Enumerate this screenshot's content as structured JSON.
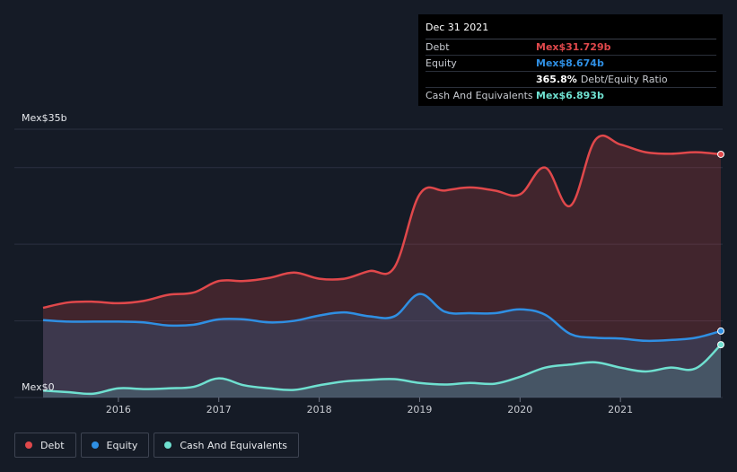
{
  "tooltip": {
    "date": "Dec 31 2021",
    "debt_label": "Debt",
    "debt_value": "Mex$31.729b",
    "equity_label": "Equity",
    "equity_value": "Mex$8.674b",
    "ratio_value": "365.8%",
    "ratio_label": "Debt/Equity Ratio",
    "cash_label": "Cash And Equivalents",
    "cash_value": "Mex$6.893b"
  },
  "legend": [
    {
      "label": "Debt",
      "color": "#e0484b"
    },
    {
      "label": "Equity",
      "color": "#2f8fe3"
    },
    {
      "label": "Cash And Equivalents",
      "color": "#6fe0d0"
    }
  ],
  "colors": {
    "debt": "#e0484b",
    "equity": "#2f8fe3",
    "cash": "#6fe0d0",
    "grid": "#2b3040"
  },
  "chart_data": {
    "type": "area",
    "title": "",
    "xlabel": "",
    "ylabel": "",
    "ylim": [
      0,
      35
    ],
    "xlim": [
      2015.25,
      2022.0
    ],
    "y_top_label": "Mex$35b",
    "y_bottom_label": "Mex$0",
    "x_ticks": [
      2016,
      2017,
      2018,
      2019,
      2020,
      2021
    ],
    "x_tick_labels": [
      "2016",
      "2017",
      "2018",
      "2019",
      "2020",
      "2021"
    ],
    "series": [
      {
        "name": "Debt",
        "x": [
          2015.25,
          2015.5,
          2015.75,
          2016.0,
          2016.25,
          2016.5,
          2016.75,
          2017.0,
          2017.25,
          2017.5,
          2017.75,
          2018.0,
          2018.25,
          2018.5,
          2018.75,
          2019.0,
          2019.25,
          2019.5,
          2019.75,
          2020.0,
          2020.25,
          2020.5,
          2020.75,
          2021.0,
          2021.25,
          2021.5,
          2021.75,
          2022.0
        ],
        "values": [
          11.7,
          12.4,
          12.5,
          12.3,
          12.6,
          13.4,
          13.7,
          15.2,
          15.2,
          15.6,
          16.3,
          15.5,
          15.5,
          16.5,
          17.0,
          26.5,
          27.0,
          27.4,
          27.0,
          26.5,
          30.0,
          25.0,
          33.6,
          33.0,
          32.0,
          31.8,
          32.0,
          31.729
        ]
      },
      {
        "name": "Equity",
        "x": [
          2015.25,
          2015.5,
          2015.75,
          2016.0,
          2016.25,
          2016.5,
          2016.75,
          2017.0,
          2017.25,
          2017.5,
          2017.75,
          2018.0,
          2018.25,
          2018.5,
          2018.75,
          2019.0,
          2019.25,
          2019.5,
          2019.75,
          2020.0,
          2020.25,
          2020.5,
          2020.75,
          2021.0,
          2021.25,
          2021.5,
          2021.75,
          2022.0
        ],
        "values": [
          10.1,
          9.9,
          9.9,
          9.9,
          9.8,
          9.4,
          9.5,
          10.2,
          10.2,
          9.8,
          10.0,
          10.7,
          11.1,
          10.6,
          10.6,
          13.5,
          11.2,
          11.0,
          11.0,
          11.5,
          10.8,
          8.3,
          7.8,
          7.7,
          7.4,
          7.5,
          7.8,
          8.674
        ]
      },
      {
        "name": "Cash And Equivalents",
        "x": [
          2015.25,
          2015.5,
          2015.75,
          2016.0,
          2016.25,
          2016.5,
          2016.75,
          2017.0,
          2017.25,
          2017.5,
          2017.75,
          2018.0,
          2018.25,
          2018.5,
          2018.75,
          2019.0,
          2019.25,
          2019.5,
          2019.75,
          2020.0,
          2020.25,
          2020.5,
          2020.75,
          2021.0,
          2021.25,
          2021.5,
          2021.75,
          2022.0
        ],
        "values": [
          0.9,
          0.7,
          0.5,
          1.2,
          1.1,
          1.2,
          1.4,
          2.5,
          1.6,
          1.2,
          1.0,
          1.6,
          2.1,
          2.3,
          2.4,
          1.9,
          1.7,
          1.9,
          1.8,
          2.7,
          3.9,
          4.3,
          4.6,
          3.9,
          3.4,
          3.9,
          3.8,
          6.893
        ]
      }
    ],
    "end_markers": true,
    "grid": true,
    "legend_position": "bottom-left"
  }
}
